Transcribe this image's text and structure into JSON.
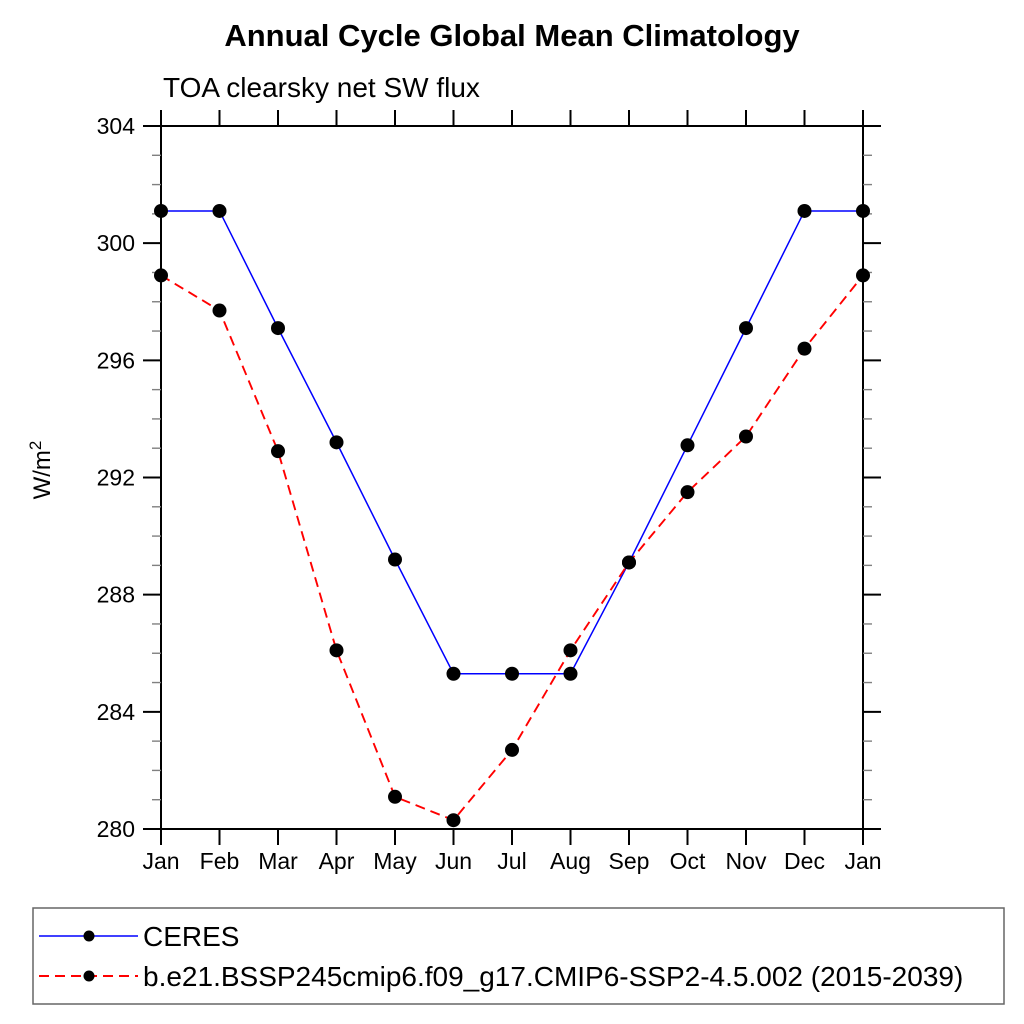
{
  "chart_data": {
    "type": "line",
    "title": "Annual Cycle Global Mean Climatology",
    "subtitle": "TOA clearsky net SW flux",
    "ylabel": "W/m²",
    "ylabel_display": {
      "base": "W/m",
      "sup": "2"
    },
    "xlabel": "",
    "categories": [
      "Jan",
      "Feb",
      "Mar",
      "Apr",
      "May",
      "Jun",
      "Jul",
      "Aug",
      "Sep",
      "Oct",
      "Nov",
      "Dec",
      "Jan"
    ],
    "ylim": [
      280,
      304
    ],
    "ytick_major_step": 4,
    "ytick_minor_step": 1,
    "grid": false,
    "legend_position": "bottom-outside",
    "axis_color": "#000000",
    "minor_tick_color": "#808080",
    "marker_color": "#000000",
    "series": [
      {
        "name": "CERES",
        "color": "#0000ff",
        "line_style": "solid",
        "marker": "filled-circle",
        "values": [
          301.1,
          301.1,
          297.1,
          293.2,
          289.2,
          285.3,
          285.3,
          285.3,
          289.1,
          293.1,
          297.1,
          301.1,
          301.1
        ]
      },
      {
        "name": "b.e21.BSSP245cmip6.f09_g17.CMIP6-SSP2-4.5.002 (2015-2039)",
        "color": "#ff0000",
        "line_style": "dashed",
        "marker": "filled-circle",
        "values": [
          298.9,
          297.7,
          292.9,
          286.1,
          281.1,
          280.3,
          282.7,
          286.1,
          289.1,
          291.5,
          293.4,
          296.4,
          298.9
        ]
      }
    ]
  }
}
